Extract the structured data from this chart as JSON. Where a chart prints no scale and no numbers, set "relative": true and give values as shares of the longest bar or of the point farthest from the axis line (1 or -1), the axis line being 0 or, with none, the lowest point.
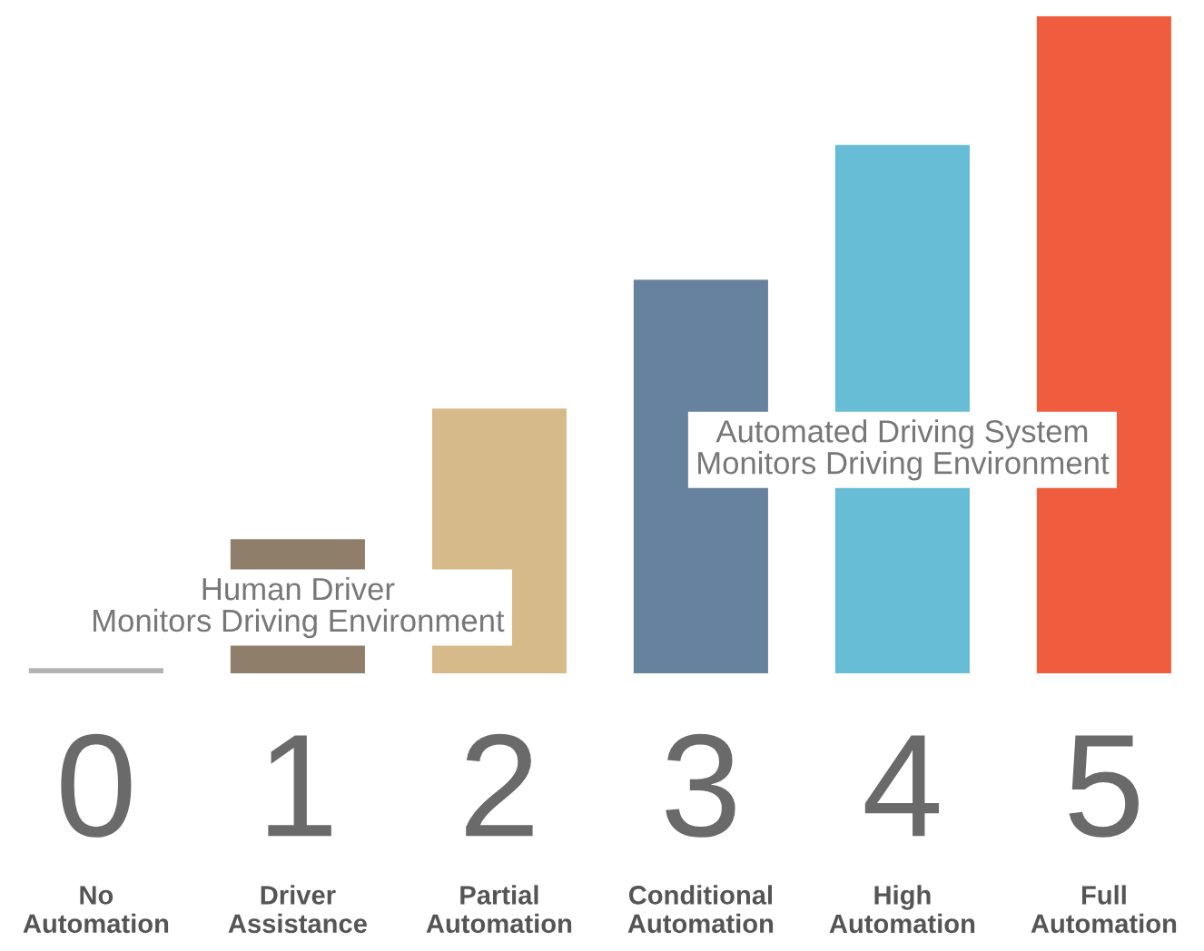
{
  "chart_data": {
    "type": "bar",
    "relative": true,
    "categories": [
      "No\nAutomation",
      "Driver\nAssistance",
      "Partial\nAutomation",
      "Conditional\nAutomation",
      "High\nAutomation",
      "Full\nAutomation"
    ],
    "values": [
      0.008,
      0.204,
      0.403,
      0.599,
      0.804,
      1
    ],
    "colors": [
      "#b3b3b3",
      "#8f7f6a",
      "#d6ba8a",
      "#67829e",
      "#67bcd6",
      "#f05d3e"
    ],
    "annotations": [
      "0",
      "1",
      "2",
      "3",
      "4",
      "5",
      "Human Driver\nMonitors Driving Environment",
      "Automated Driving System\nMonitors Driving Environment"
    ],
    "grid": false,
    "legend": false
  }
}
